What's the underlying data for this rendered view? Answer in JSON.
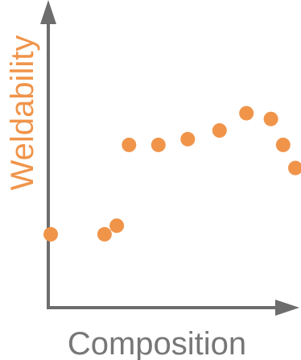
{
  "chart_data": {
    "type": "scatter",
    "xlabel": "Composition",
    "ylabel": "Weldability",
    "xlabel_color": "#777777",
    "ylabel_color": "#f0944a",
    "axis_color": "#6d6d6d",
    "point_color": "#f0944a",
    "grid": false,
    "legend": "none",
    "xlim": [
      0,
      10
    ],
    "ylim": [
      0,
      10
    ],
    "series": [
      {
        "x": [
          0.1,
          2.3,
          2.8,
          3.3,
          4.5,
          5.7,
          7.0,
          8.1,
          9.1,
          9.6,
          10.1
        ],
        "y": [
          2.6,
          2.6,
          2.9,
          5.7,
          5.7,
          5.9,
          6.2,
          6.8,
          6.6,
          5.7,
          4.9
        ]
      }
    ]
  }
}
